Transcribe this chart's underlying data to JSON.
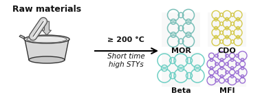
{
  "background_color": "#ffffff",
  "raw_materials_text": "Raw materials",
  "arrow_condition_text": "≥ 200 °C",
  "arrow_subtitle_text": "Short time\nhigh STYs",
  "zeolite_labels": [
    "MOR",
    "CDO",
    "Beta",
    "MFI"
  ],
  "zeolite_colors": [
    "#7abfb8",
    "#d4c94a",
    "#6ecfc4",
    "#9b6fd4"
  ],
  "figsize": [
    3.78,
    1.57
  ],
  "dpi": 100
}
